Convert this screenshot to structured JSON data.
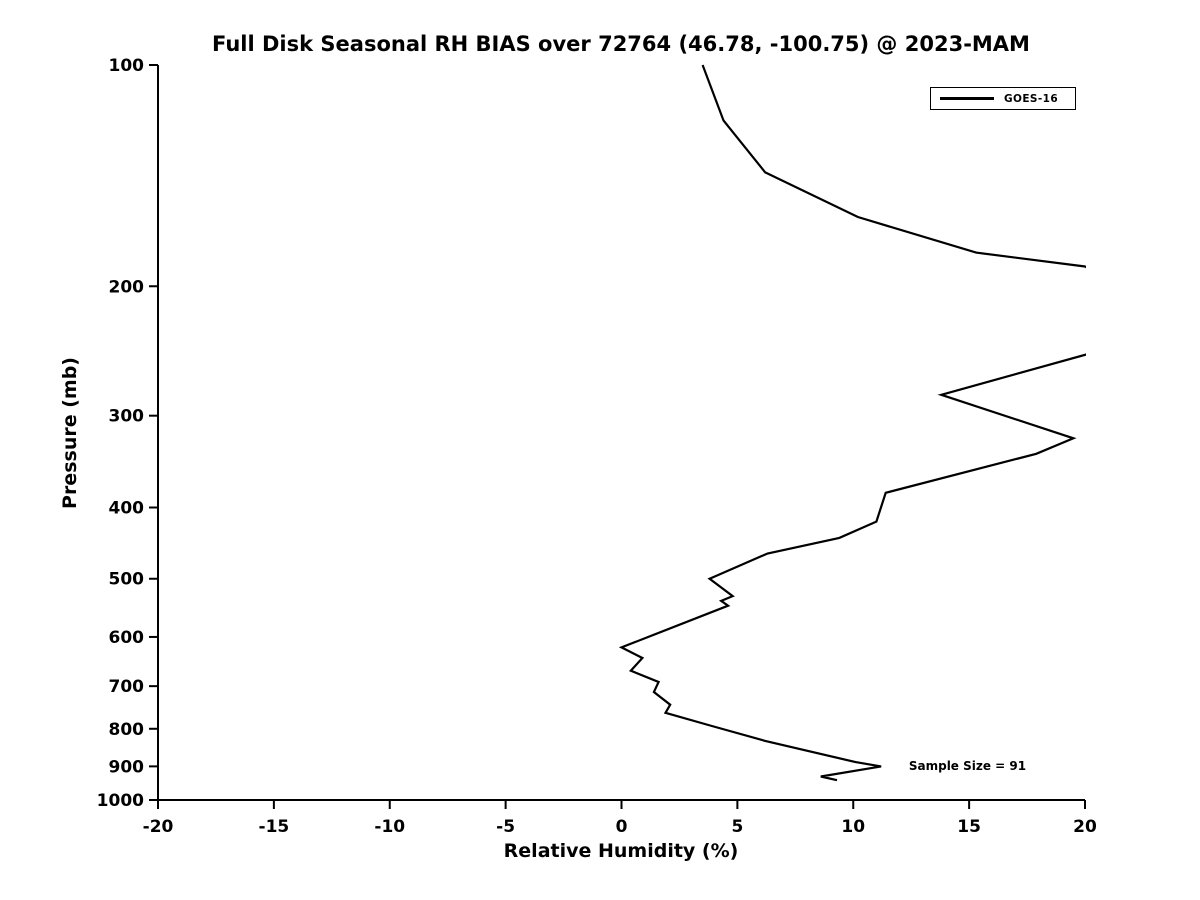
{
  "chart_data": {
    "type": "line",
    "title": "Full Disk Seasonal RH BIAS over 72764 (46.78, -100.75) @ 2023-MAM",
    "xlabel": "Relative Humidity (%)",
    "ylabel": "Pressure (mb)",
    "xlim": [
      -20,
      20
    ],
    "ylim": [
      100,
      1000
    ],
    "y_scale": "log",
    "y_inverted": true,
    "grid": false,
    "background_color": "#ffffff",
    "axis_color": "#000000",
    "x_ticks": [
      -20,
      -15,
      -10,
      -5,
      0,
      5,
      10,
      15,
      20
    ],
    "y_ticks": [
      100,
      200,
      300,
      400,
      500,
      600,
      700,
      800,
      900,
      1000
    ],
    "legend": {
      "position": "top-right",
      "entries": [
        {
          "name": "GOES-16",
          "color": "#000000"
        }
      ]
    },
    "annotation": {
      "text": "Sample Size = 91",
      "x_value": 12.4,
      "pressure": 900
    },
    "series": [
      {
        "name": "GOES-16",
        "color": "#000000",
        "line_width": 2.2,
        "point_format": [
          "rh_bias_percent",
          "pressure_mb"
        ],
        "points": [
          [
            3.5,
            100
          ],
          [
            4.4,
            119
          ],
          [
            6.2,
            140
          ],
          [
            10.2,
            161
          ],
          [
            15.3,
            180
          ],
          [
            20.0,
            188
          ],
          [
            23.5,
            215
          ],
          [
            21.0,
            243
          ],
          [
            13.8,
            281
          ],
          [
            19.5,
            322
          ],
          [
            17.9,
            338
          ],
          [
            11.4,
            382
          ],
          [
            11.0,
            418
          ],
          [
            9.4,
            440
          ],
          [
            6.3,
            462
          ],
          [
            3.8,
            500
          ],
          [
            4.8,
            528
          ],
          [
            4.3,
            536
          ],
          [
            4.6,
            544
          ],
          [
            0.0,
            620
          ],
          [
            0.9,
            641
          ],
          [
            0.4,
            667
          ],
          [
            1.6,
            691
          ],
          [
            1.4,
            713
          ],
          [
            2.1,
            742
          ],
          [
            1.9,
            761
          ],
          [
            3.9,
            793
          ],
          [
            6.2,
            831
          ],
          [
            10.1,
            888
          ],
          [
            11.2,
            900
          ],
          [
            8.6,
            929
          ],
          [
            9.3,
            940
          ]
        ]
      }
    ]
  }
}
